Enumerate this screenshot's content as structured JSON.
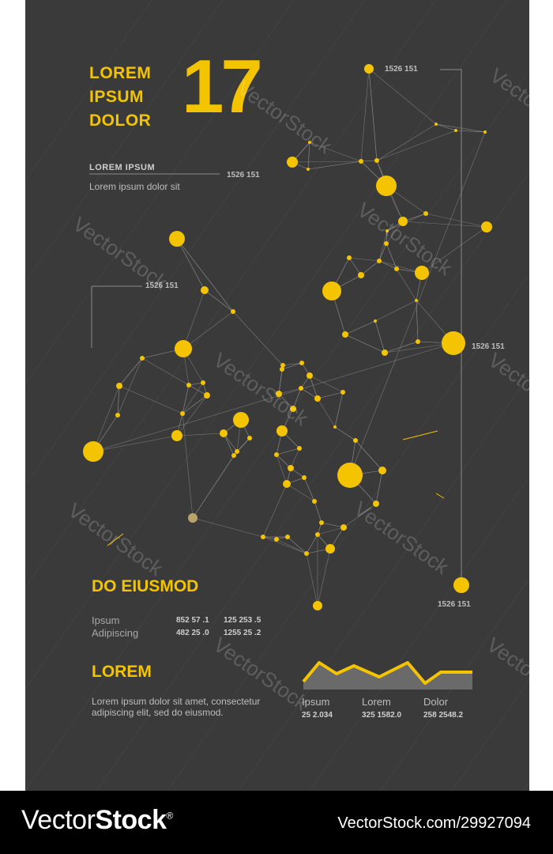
{
  "title_lines": [
    "LOREM",
    "IPSUM",
    "DOLOR"
  ],
  "big_number": "17",
  "number_labels": {
    "top": "1526 151",
    "small_head": "1526 151",
    "left": "1526 151",
    "right": "1526 151",
    "bottom": "1526 151"
  },
  "small_heading": "LOREM IPSUM",
  "small_text": "Lorem ipsum dolor sit",
  "section1": {
    "heading": "DO EIUSMOD",
    "rows": [
      {
        "label": "Ipsum",
        "v1": "852 57 .1",
        "v2": "125 253 .5"
      },
      {
        "label": "Adipiscing",
        "v1": "482 25 .0",
        "v2": "1255 25 .2"
      }
    ]
  },
  "section2": {
    "heading": "LOREM",
    "paragraph": "Lorem ipsum dolor sit amet, consectetur adipiscing elit, sed do eiusmod."
  },
  "mini_chart": {
    "columns": [
      {
        "label": "Ipsum",
        "value": "25 2.034"
      },
      {
        "label": "Lorem",
        "value": "325 1582.0"
      },
      {
        "label": "Dolor",
        "value": "258 2548.2"
      }
    ]
  },
  "watermark": "VectorStock",
  "footer": {
    "brand_prefix": "Vector",
    "brand_suffix": "Stock",
    "registered": "®",
    "reference": "VectorStock.com/29927094"
  },
  "colors": {
    "background": "#3a3a3a",
    "accent": "#f5c400",
    "muted_node": "#b8a46a",
    "footer": "#000000"
  }
}
